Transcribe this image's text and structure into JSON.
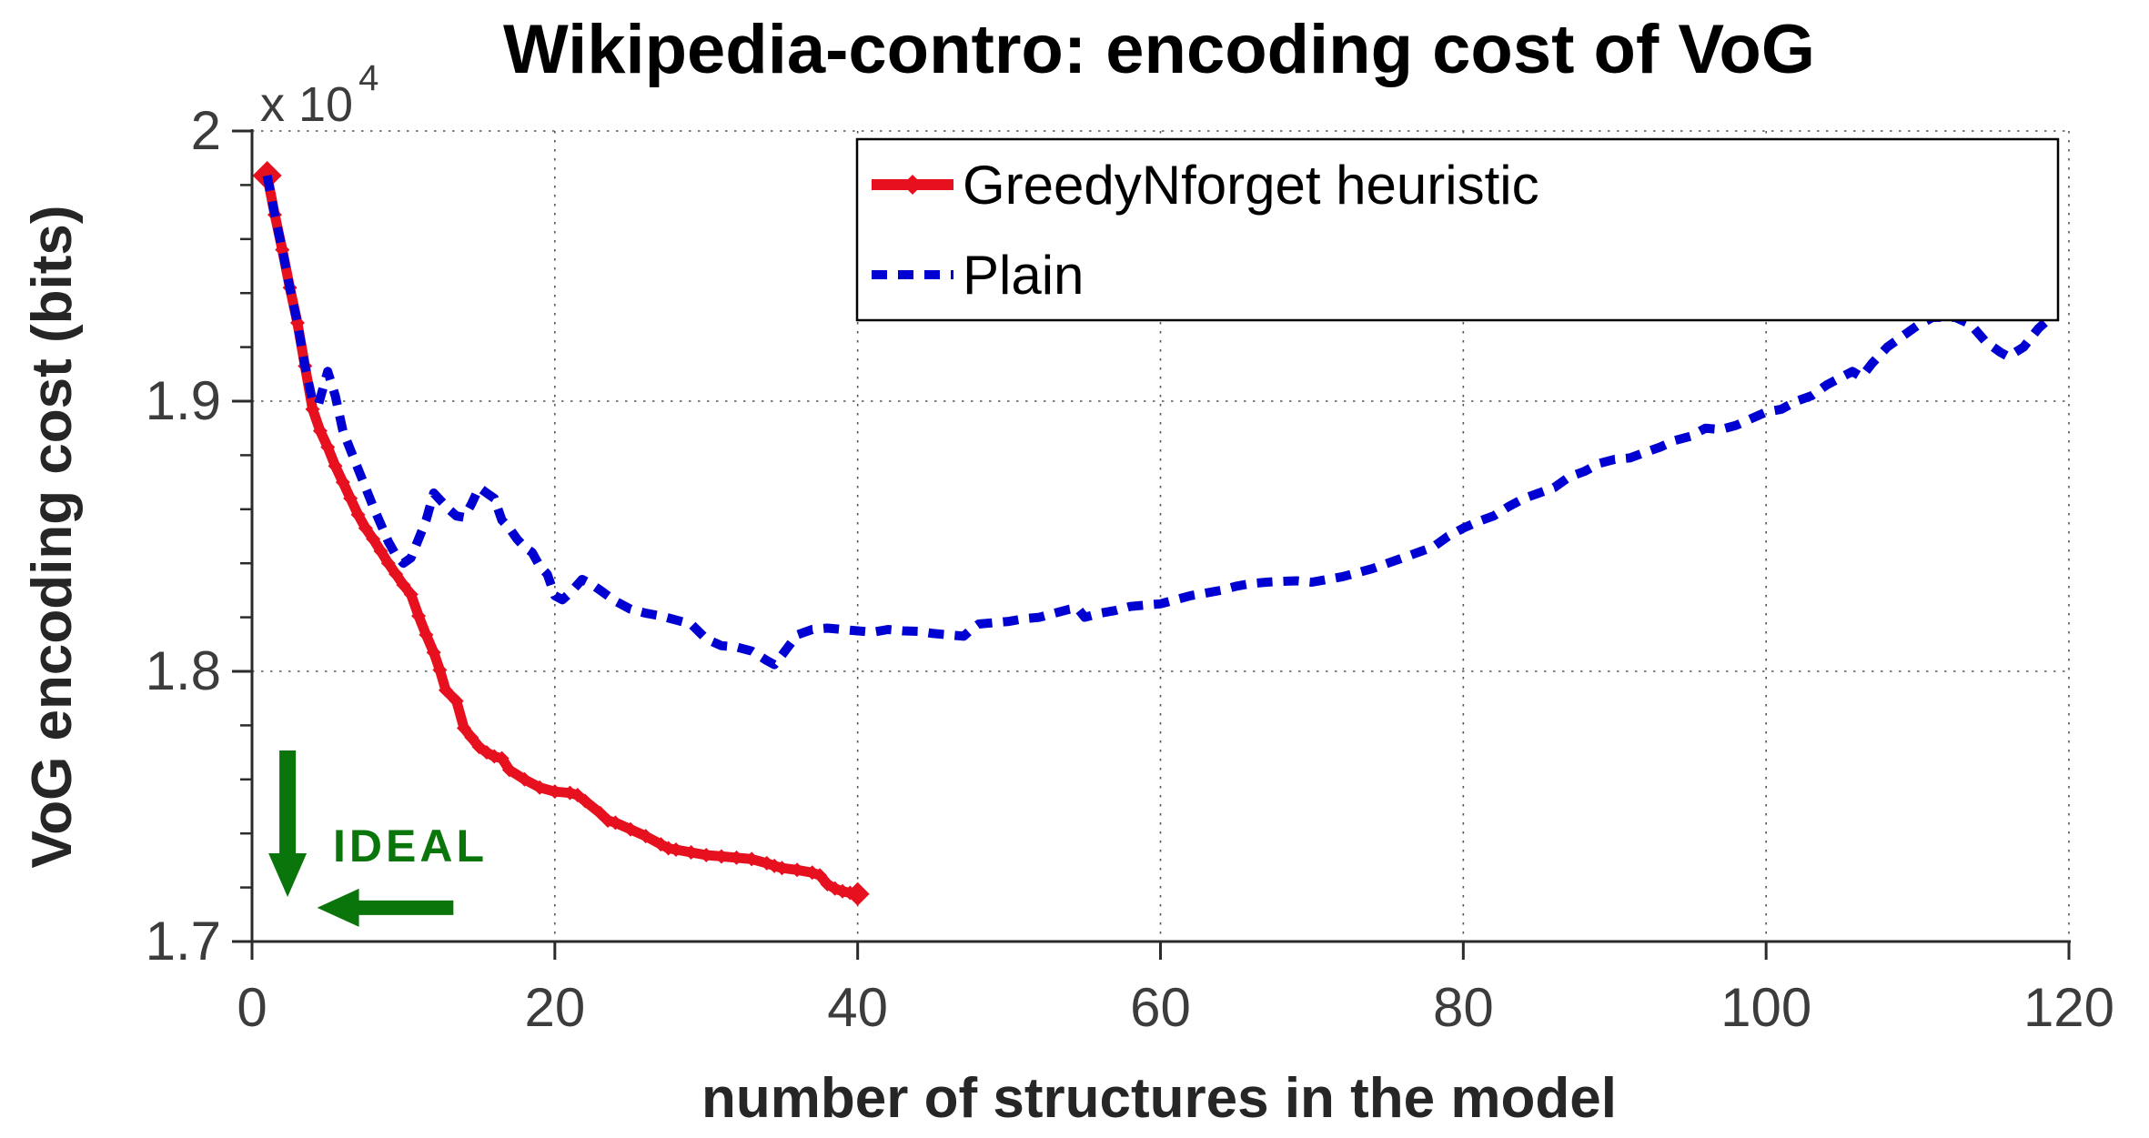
{
  "title": "Wikipedia-contro: encoding cost of VoG",
  "y_exponent": {
    "base": "x 10",
    "exp": "4"
  },
  "annotation": {
    "label": "IDEAL",
    "color": "#0a750a"
  },
  "colors": {
    "red_series": "#e6101f",
    "blue_series": "#0000d2",
    "axis": "#2b2b2b",
    "grid": "#555555",
    "legend_border": "#000000",
    "legend_bg": "#ffffff"
  },
  "legend": {
    "items": [
      {
        "label": "GreedyNforget heuristic",
        "color": "#e6101f",
        "dashed": false
      },
      {
        "label": "Plain",
        "color": "#0000d2",
        "dashed": true
      }
    ]
  },
  "chart_data": {
    "type": "line",
    "title": "Wikipedia-contro: encoding cost of VoG",
    "xlabel": "number of structures in the model",
    "ylabel": "VoG encoding cost (bits)",
    "y_unit_exponent": "x 10^4",
    "xlim": [
      0,
      120
    ],
    "ylim": [
      1.7,
      2.0
    ],
    "x_ticks": [
      0,
      20,
      40,
      60,
      80,
      100,
      120
    ],
    "y_ticks": [
      {
        "value": 2.0,
        "label": "2"
      },
      {
        "value": 1.9,
        "label": "1.9"
      },
      {
        "value": 1.8,
        "label": "1.8"
      },
      {
        "value": 1.7,
        "label": "1.7"
      }
    ],
    "y_minor_tick_step": 0.02,
    "grid": "dotted, vertical at every 20 x-units, horizontal at 1.8 1.9 2.0",
    "legend_position": "upper right",
    "series": [
      {
        "name": "GreedyNforget heuristic",
        "style": "solid thick red with diamond markers, ends at x=40",
        "points": [
          [
            1,
            1.9835
          ],
          [
            1.5,
            1.969
          ],
          [
            2,
            1.956
          ],
          [
            2.5,
            1.942
          ],
          [
            3,
            1.929
          ],
          [
            3.5,
            1.913
          ],
          [
            4,
            1.897
          ],
          [
            4.5,
            1.889
          ],
          [
            5,
            1.883
          ],
          [
            5.5,
            1.876
          ],
          [
            6,
            1.87
          ],
          [
            6.5,
            1.864
          ],
          [
            7,
            1.858
          ],
          [
            7.5,
            1.853
          ],
          [
            8,
            1.849
          ],
          [
            8.5,
            1.8445
          ],
          [
            9,
            1.84
          ],
          [
            9.5,
            1.836
          ],
          [
            10,
            1.832
          ],
          [
            10.5,
            1.8285
          ],
          [
            11,
            1.8205
          ],
          [
            11.5,
            1.8135
          ],
          [
            12,
            1.807
          ],
          [
            12.4,
            1.8005
          ],
          [
            12.8,
            1.793
          ],
          [
            13.5,
            1.789
          ],
          [
            14,
            1.779
          ],
          [
            14.5,
            1.7755
          ],
          [
            15,
            1.772
          ],
          [
            15.5,
            1.77
          ],
          [
            16,
            1.7685
          ],
          [
            16.5,
            1.7678
          ],
          [
            17,
            1.7635
          ],
          [
            18,
            1.76
          ],
          [
            19,
            1.757
          ],
          [
            20,
            1.7555
          ],
          [
            21,
            1.755
          ],
          [
            21.5,
            1.7542
          ],
          [
            22,
            1.752
          ],
          [
            23,
            1.7475
          ],
          [
            23.5,
            1.7448
          ],
          [
            24,
            1.744
          ],
          [
            25,
            1.7415
          ],
          [
            26,
            1.739
          ],
          [
            27,
            1.736
          ],
          [
            27.5,
            1.7345
          ],
          [
            28,
            1.734
          ],
          [
            29,
            1.733
          ],
          [
            30,
            1.732
          ],
          [
            31,
            1.7315
          ],
          [
            32,
            1.731
          ],
          [
            33,
            1.7305
          ],
          [
            34,
            1.729
          ],
          [
            34.5,
            1.728
          ],
          [
            35,
            1.7272
          ],
          [
            36,
            1.7265
          ],
          [
            37,
            1.7255
          ],
          [
            37.5,
            1.7245
          ],
          [
            38,
            1.7212
          ],
          [
            38.5,
            1.7196
          ],
          [
            39,
            1.7186
          ],
          [
            39.5,
            1.718
          ],
          [
            40,
            1.7176
          ]
        ]
      },
      {
        "name": "Plain",
        "style": "dashed thick blue, continues to x=119",
        "points": [
          [
            1,
            1.9835
          ],
          [
            1.5,
            1.969
          ],
          [
            2,
            1.956
          ],
          [
            2.5,
            1.942
          ],
          [
            3,
            1.929
          ],
          [
            3.5,
            1.913
          ],
          [
            4,
            1.9
          ],
          [
            4.4,
            1.899
          ],
          [
            5,
            1.911
          ],
          [
            5.5,
            1.902
          ],
          [
            6,
            1.889
          ],
          [
            6.5,
            1.882
          ],
          [
            7,
            1.875
          ],
          [
            7.5,
            1.868
          ],
          [
            8,
            1.861
          ],
          [
            8.5,
            1.8545
          ],
          [
            9,
            1.848
          ],
          [
            9.5,
            1.843
          ],
          [
            10,
            1.84
          ],
          [
            10.5,
            1.842
          ],
          [
            11,
            1.849
          ],
          [
            11.5,
            1.856
          ],
          [
            12,
            1.866
          ],
          [
            12.5,
            1.863
          ],
          [
            13,
            1.86
          ],
          [
            13.5,
            1.8575
          ],
          [
            14,
            1.857
          ],
          [
            14.5,
            1.862
          ],
          [
            15,
            1.868
          ],
          [
            15.5,
            1.866
          ],
          [
            16,
            1.864
          ],
          [
            16.5,
            1.856
          ],
          [
            17,
            1.853
          ],
          [
            17.5,
            1.849
          ],
          [
            18,
            1.846
          ],
          [
            18.5,
            1.844
          ],
          [
            19,
            1.839
          ],
          [
            19.5,
            1.836
          ],
          [
            20,
            1.828
          ],
          [
            20.5,
            1.8265
          ],
          [
            21,
            1.829
          ],
          [
            21.8,
            1.834
          ],
          [
            22.5,
            1.832
          ],
          [
            23,
            1.83
          ],
          [
            24,
            1.826
          ],
          [
            25,
            1.823
          ],
          [
            26,
            1.8215
          ],
          [
            27,
            1.8205
          ],
          [
            28,
            1.819
          ],
          [
            29,
            1.8175
          ],
          [
            30,
            1.812
          ],
          [
            31,
            1.8095
          ],
          [
            32,
            1.809
          ],
          [
            33,
            1.8075
          ],
          [
            34,
            1.804
          ],
          [
            34.5,
            1.8025
          ],
          [
            35,
            1.806
          ],
          [
            36,
            1.8135
          ],
          [
            37,
            1.8155
          ],
          [
            38,
            1.816
          ],
          [
            39,
            1.8155
          ],
          [
            40,
            1.815
          ],
          [
            41,
            1.8145
          ],
          [
            42,
            1.8155
          ],
          [
            43,
            1.815
          ],
          [
            44,
            1.8148
          ],
          [
            45,
            1.814
          ],
          [
            46,
            1.8135
          ],
          [
            47,
            1.813
          ],
          [
            47.5,
            1.8155
          ],
          [
            48,
            1.8175
          ],
          [
            49,
            1.818
          ],
          [
            50,
            1.8185
          ],
          [
            51,
            1.8195
          ],
          [
            52,
            1.82
          ],
          [
            53,
            1.8215
          ],
          [
            54,
            1.823
          ],
          [
            54.5,
            1.8235
          ],
          [
            55,
            1.82
          ],
          [
            56,
            1.8215
          ],
          [
            57,
            1.8225
          ],
          [
            58,
            1.824
          ],
          [
            59,
            1.8245
          ],
          [
            60,
            1.825
          ],
          [
            61,
            1.8265
          ],
          [
            62,
            1.828
          ],
          [
            63,
            1.829
          ],
          [
            64,
            1.83
          ],
          [
            65,
            1.8315
          ],
          [
            66,
            1.8325
          ],
          [
            67,
            1.833
          ],
          [
            68,
            1.8333
          ],
          [
            69,
            1.8335
          ],
          [
            70,
            1.833
          ],
          [
            71,
            1.834
          ],
          [
            72,
            1.835
          ],
          [
            73,
            1.8365
          ],
          [
            74,
            1.838
          ],
          [
            75,
            1.84
          ],
          [
            76,
            1.842
          ],
          [
            77,
            1.844
          ],
          [
            78,
            1.846
          ],
          [
            79,
            1.85
          ],
          [
            80,
            1.853
          ],
          [
            81,
            1.8555
          ],
          [
            82,
            1.8575
          ],
          [
            83,
            1.861
          ],
          [
            84,
            1.864
          ],
          [
            85,
            1.866
          ],
          [
            86,
            1.868
          ],
          [
            87,
            1.872
          ],
          [
            88,
            1.874
          ],
          [
            89,
            1.877
          ],
          [
            90,
            1.8785
          ],
          [
            91,
            1.879
          ],
          [
            92,
            1.881
          ],
          [
            93,
            1.883
          ],
          [
            94,
            1.8855
          ],
          [
            95,
            1.887
          ],
          [
            96,
            1.89
          ],
          [
            97,
            1.8895
          ],
          [
            98,
            1.891
          ],
          [
            99,
            1.8935
          ],
          [
            100,
            1.896
          ],
          [
            101,
            1.897
          ],
          [
            102,
            1.9
          ],
          [
            103,
            1.902
          ],
          [
            104,
            1.906
          ],
          [
            105,
            1.909
          ],
          [
            105.7,
            1.911
          ],
          [
            106.3,
            1.909
          ],
          [
            107,
            1.914
          ],
          [
            108,
            1.92
          ],
          [
            109,
            1.924
          ],
          [
            110,
            1.928
          ],
          [
            111,
            1.931
          ],
          [
            112.5,
            1.931
          ],
          [
            113.5,
            1.9285
          ],
          [
            114.5,
            1.922
          ],
          [
            115.5,
            1.918
          ],
          [
            116,
            1.9165
          ],
          [
            117,
            1.92
          ],
          [
            118,
            1.927
          ],
          [
            118.7,
            1.9305
          ]
        ]
      }
    ],
    "annotations": [
      {
        "type": "text",
        "label": "IDEAL",
        "x": 5.3,
        "y": 1.733
      },
      {
        "type": "arrow-down",
        "x": 2.35,
        "y_from": 1.7707,
        "y_to": 1.7165
      },
      {
        "type": "arrow-left",
        "y": 1.7125,
        "x_from": 13.3,
        "x_to": 4.3
      }
    ]
  }
}
